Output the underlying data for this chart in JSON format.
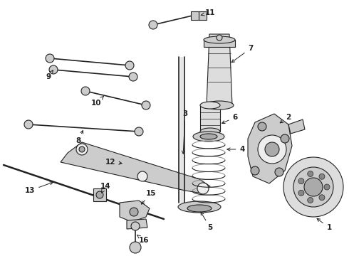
{
  "bg_color": "#ffffff",
  "line_color": "#222222",
  "fig_width": 4.9,
  "fig_height": 3.6,
  "dpi": 100,
  "xlim": [
    0,
    490
  ],
  "ylim": [
    0,
    360
  ],
  "lw_thin": 0.8,
  "lw_med": 1.2,
  "lw_thick": 1.8,
  "gray_light": "#cccccc",
  "gray_mid": "#aaaaaa",
  "gray_dark": "#666666",
  "label_fontsize": 7.5
}
